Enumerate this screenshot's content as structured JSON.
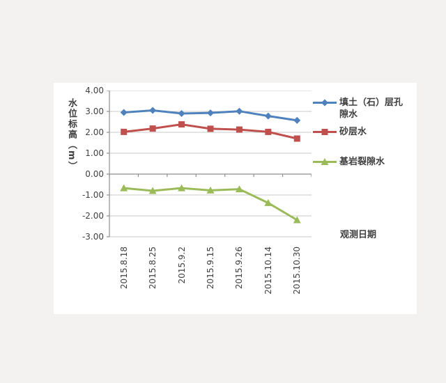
{
  "colors": {
    "background": "#f3f2f1",
    "panel": "#ffffff",
    "gridline": "#c9c9c9",
    "axis": "#8e8e8e",
    "text": "#3f3f3f"
  },
  "chart_data": {
    "type": "line",
    "title": "",
    "ylabel": "水位标高（m）",
    "xlabel": "观测日期",
    "categories": [
      "2015.8.18",
      "2015.8.25",
      "2015.9.2",
      "2015.9.15",
      "2015.9.26",
      "2015.10.14",
      "2015.10.30"
    ],
    "series": [
      {
        "name": "填土（石）层孔隙水",
        "color": "#4F81BD",
        "marker": "diamond",
        "values": [
          2.95,
          3.05,
          2.9,
          2.93,
          3.01,
          2.78,
          2.57
        ]
      },
      {
        "name": "砂层水",
        "color": "#C0504D",
        "marker": "square",
        "values": [
          2.02,
          2.18,
          2.38,
          2.17,
          2.13,
          2.02,
          1.7
        ]
      },
      {
        "name": "基岩裂隙水",
        "color": "#9BBB59",
        "marker": "triangle",
        "values": [
          -0.67,
          -0.8,
          -0.67,
          -0.78,
          -0.72,
          -1.38,
          -2.2
        ]
      }
    ],
    "ylim": [
      -3,
      4
    ],
    "ytick_step": 1,
    "ytick_labels": [
      "4.00",
      "3.00",
      "2.00",
      "1.00",
      "0.00",
      "-1.00",
      "-2.00",
      "-3.00"
    ],
    "grid": true,
    "x_axis_crosses_at": 0,
    "legend_position": "right"
  }
}
